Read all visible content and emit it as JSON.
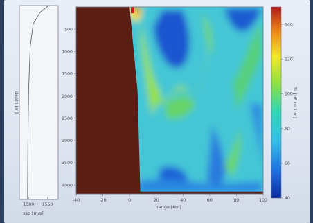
{
  "chart_data": [
    {
      "type": "line",
      "xlabel": "ssp [m/s]",
      "ylabel": "depth [m]",
      "x_ticks": [
        "1500",
        "1550"
      ],
      "series": [
        {
          "x": [
            1553,
            1530,
            1512,
            1504,
            1500,
            1498,
            1497
          ],
          "y": [
            0,
            150,
            400,
            900,
            1800,
            3000,
            4200
          ]
        }
      ]
    },
    {
      "type": "heatmap",
      "xlabel": "range [km]",
      "ylabel": "",
      "xlim": [
        -40,
        100
      ],
      "ylim": [
        0,
        4200
      ],
      "x_ticks": [
        "-40",
        "-20",
        "0",
        "20",
        "40",
        "60",
        "80",
        "100"
      ],
      "y_ticks": [
        "500",
        "1000",
        "1500",
        "2000",
        "2500",
        "3000",
        "3500",
        "4000"
      ],
      "colorbar": {
        "label": "TL [dB re 1 m]",
        "ticks": [
          "40",
          "60",
          "80",
          "100",
          "120",
          "140"
        ],
        "colors": [
          "#0a2a9e",
          "#1f6fe0",
          "#35c0e8",
          "#2fd8b8",
          "#8fe040",
          "#f0e820",
          "#f08a18",
          "#b01818"
        ]
      },
      "bathymetry": {
        "range_km": [
          -40,
          0,
          6,
          8,
          100
        ],
        "depth_m": [
          0,
          0,
          1900,
          4150,
          4150
        ]
      }
    }
  ]
}
